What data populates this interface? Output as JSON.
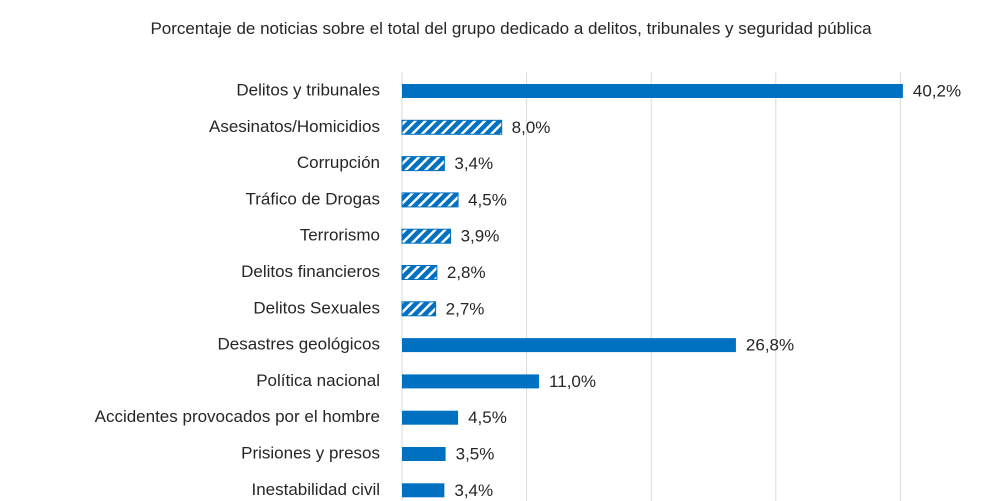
{
  "chart_data": {
    "type": "hbar",
    "title": "Porcentaje de noticias sobre el total del grupo dedicado a delitos, tribunales y seguridad pública",
    "categories": [
      "Delitos y tribunales",
      "Asesinatos/Homicidios",
      "Corrupción",
      "Tráfico de Drogas",
      "Terrorismo",
      "Delitos financieros",
      "Delitos Sexuales",
      "Desastres geológicos",
      "Política nacional",
      "Accidentes provocados por el hombre",
      "Prisiones y presos",
      "Inestabilidad civil"
    ],
    "values": [
      40.2,
      8.0,
      3.4,
      4.5,
      3.9,
      2.8,
      2.7,
      26.8,
      11.0,
      4.5,
      3.5,
      3.4
    ],
    "value_labels": [
      "40,2%",
      "8,0%",
      "3,4%",
      "4,5%",
      "3,9%",
      "2,8%",
      "2,7%",
      "26,8%",
      "11,0%",
      "4,5%",
      "3,5%",
      "3,4%"
    ],
    "hatched": [
      false,
      true,
      true,
      true,
      true,
      true,
      true,
      false,
      false,
      false,
      false,
      false
    ],
    "color": "#0070c0",
    "xlim": [
      0,
      45
    ],
    "xticks": [
      0,
      10,
      20,
      30,
      40
    ],
    "grid": true
  }
}
